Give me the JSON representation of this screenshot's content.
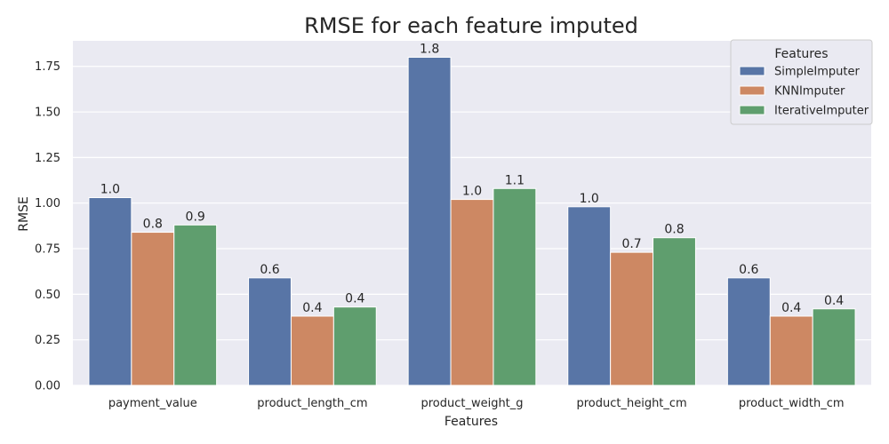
{
  "chart_data": {
    "type": "bar",
    "title": "RMSE for each feature imputed",
    "xlabel": "Features",
    "ylabel": "RMSE",
    "categories": [
      "payment_value",
      "product_length_cm",
      "product_weight_g",
      "product_height_cm",
      "product_width_cm"
    ],
    "series": [
      {
        "name": "SimpleImputer",
        "color": "#5875a6",
        "values": [
          1.03,
          0.59,
          1.8,
          0.98,
          0.59
        ],
        "labels": [
          "1.0",
          "0.6",
          "1.8",
          "1.0",
          "0.6"
        ]
      },
      {
        "name": "KNNImputer",
        "color": "#cd8863",
        "values": [
          0.84,
          0.38,
          1.02,
          0.73,
          0.38
        ],
        "labels": [
          "0.8",
          "0.4",
          "1.0",
          "0.7",
          "0.4"
        ]
      },
      {
        "name": "IterativeImputer",
        "color": "#5f9e6e",
        "values": [
          0.88,
          0.43,
          1.08,
          0.81,
          0.42
        ],
        "labels": [
          "0.9",
          "0.4",
          "1.1",
          "0.8",
          "0.4"
        ]
      }
    ],
    "ylim": [
      0,
      1.89
    ],
    "yticks": [
      "0.00",
      "0.25",
      "0.50",
      "0.75",
      "1.00",
      "1.25",
      "1.50",
      "1.75"
    ],
    "grid": true,
    "legend": {
      "title": "Features",
      "placement": "top-right"
    },
    "colors": {
      "plot_background": "#eaeaf2",
      "grid": "#ffffff"
    }
  }
}
